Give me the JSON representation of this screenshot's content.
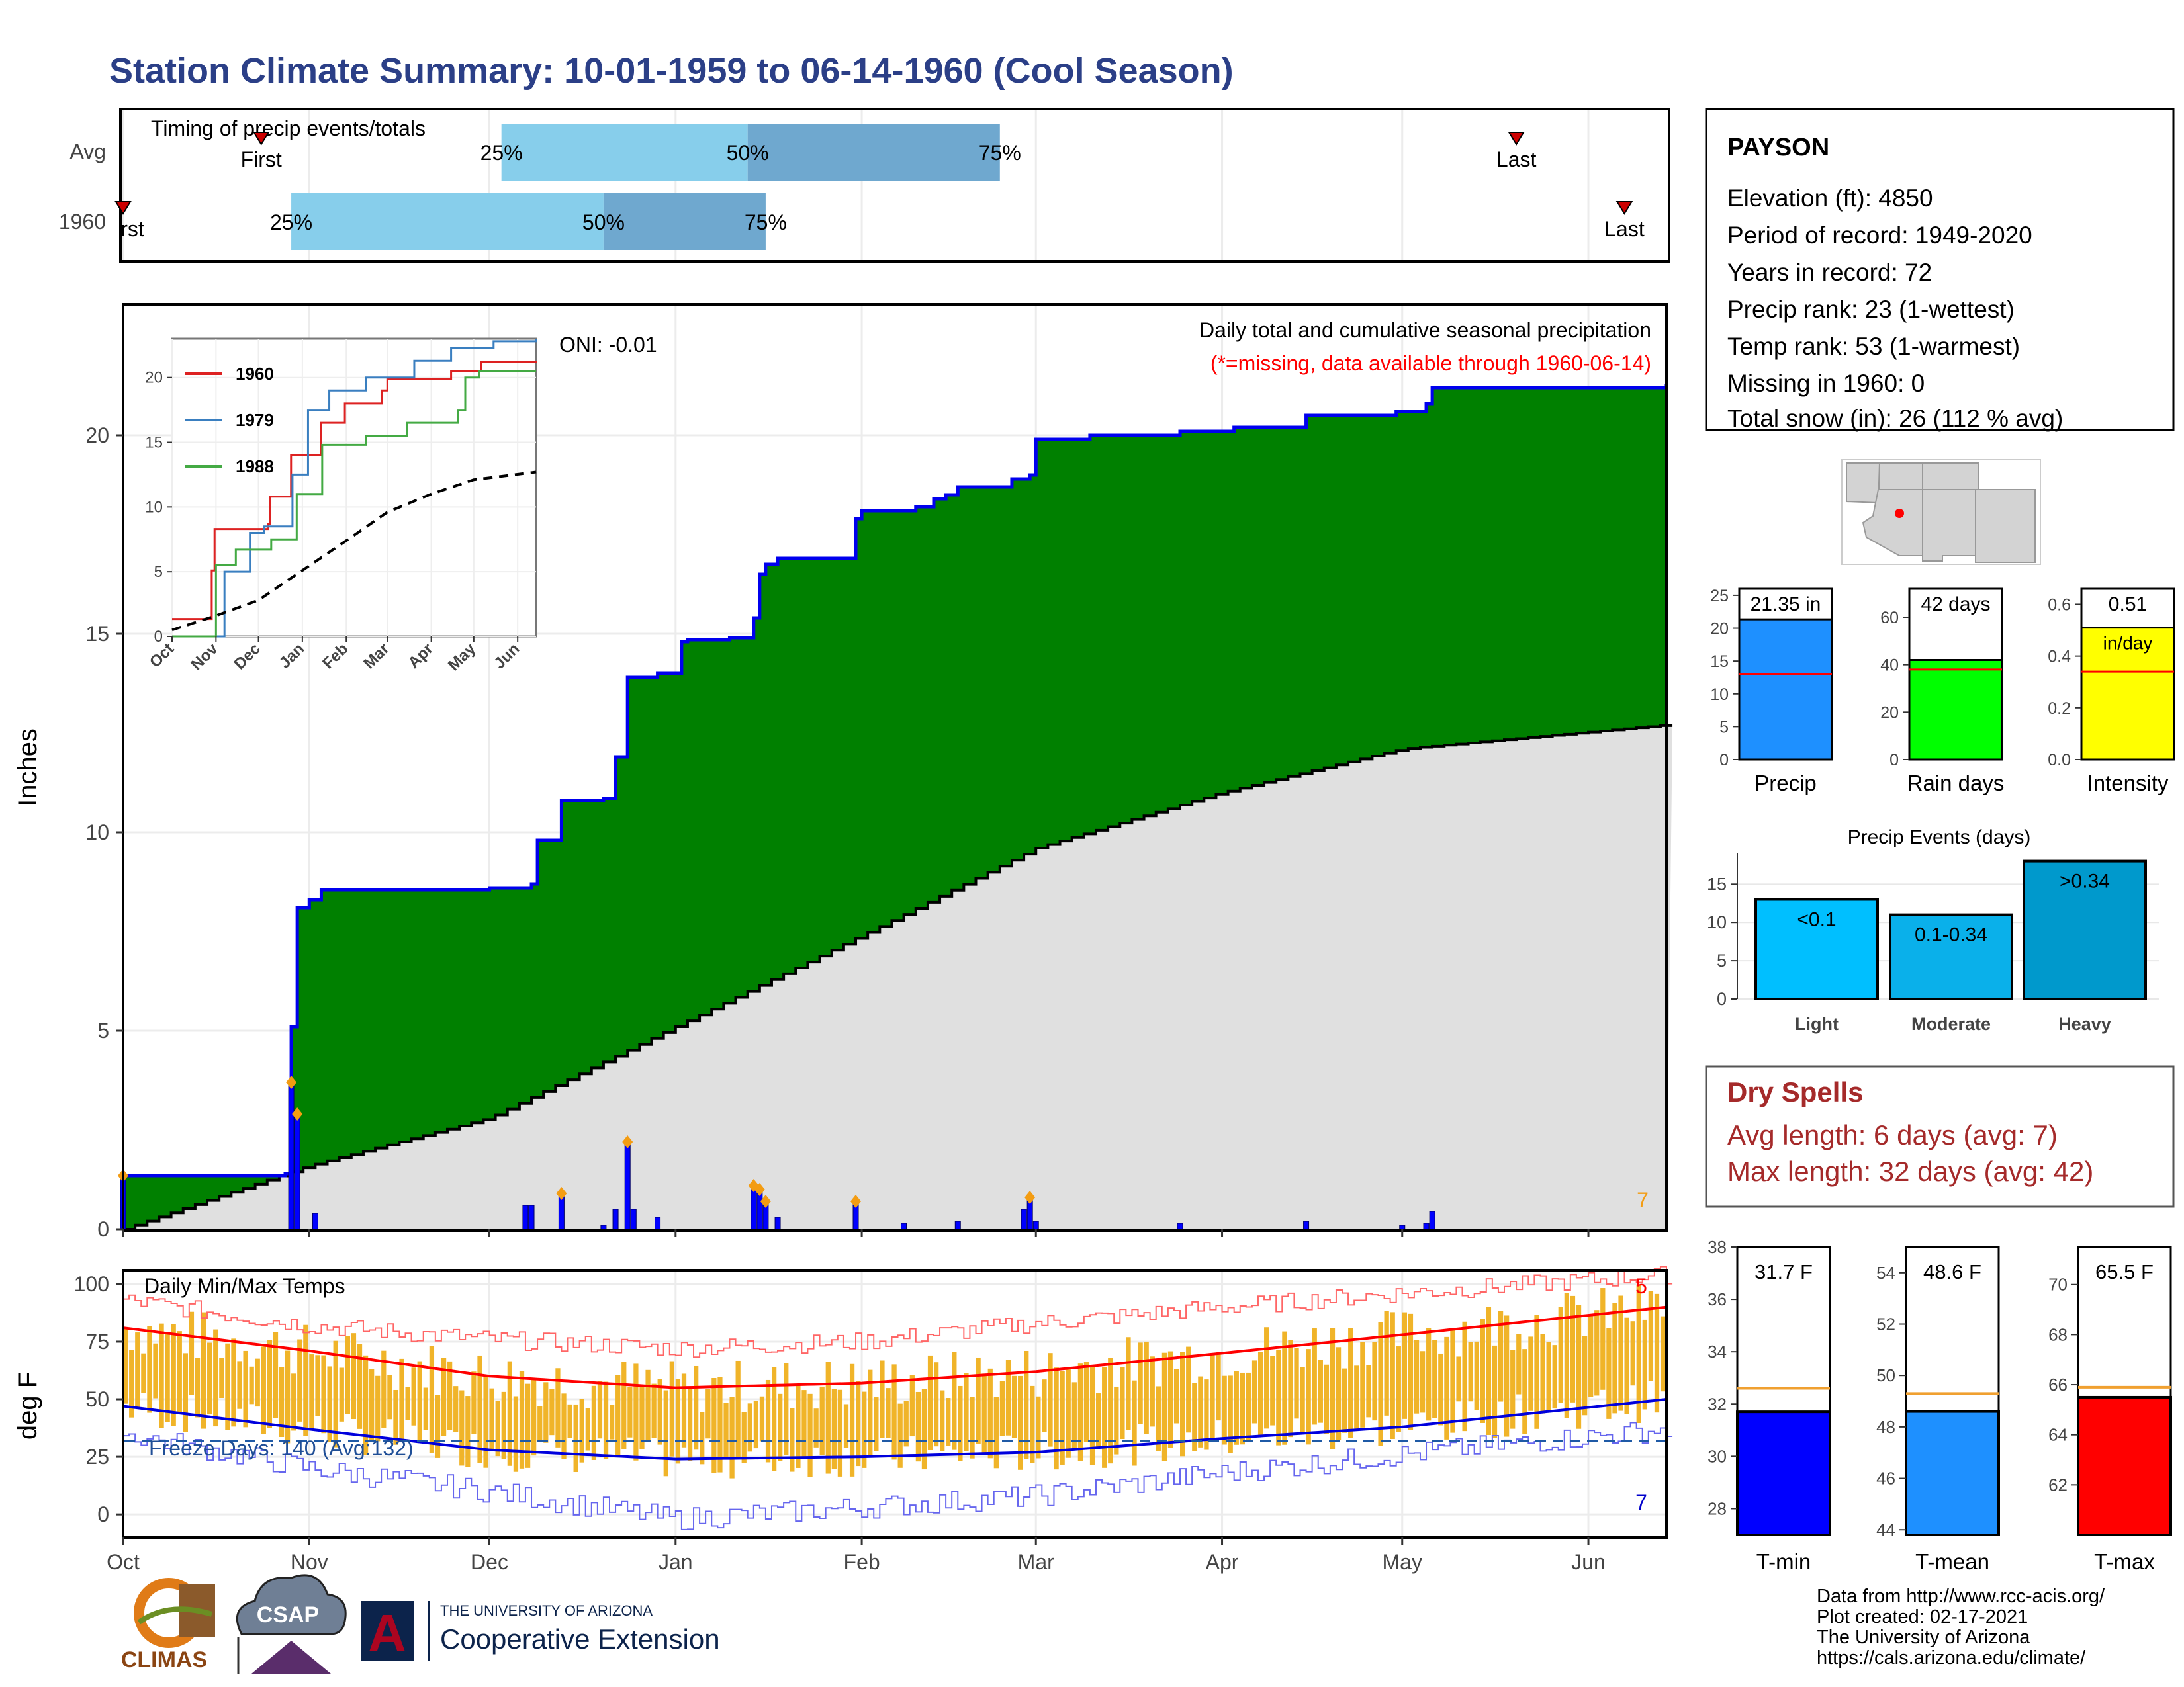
{
  "title": "Station Climate Summary: 10-01-1959 to 06-14-1960 (Cool Season)",
  "colors": {
    "title": "#2b3f87",
    "precip_cum": "#008000",
    "precip_line": "#0000ee",
    "normal_fill": "#e0e0e0",
    "daily_bar": "#0000ff",
    "timing_light": "#87ceeb",
    "timing_dark": "#6fa8cf",
    "tmax_avg": "#ff0000",
    "tmin_avg": "#0000dd",
    "temp_bar": "#f0b429",
    "dry_spells": "#a52a2a"
  },
  "timing": {
    "title": "Timing of precip events/totals",
    "rows": [
      {
        "label": "Avg",
        "first_label": "First",
        "last_label": "Last",
        "first": "1959-10-24",
        "p25": "1959-12-03",
        "p50": "1960-01-13",
        "p75": "1960-02-24",
        "last": "1960-05-20",
        "pct25": "25%",
        "pct50": "50%",
        "pct75": "75%"
      },
      {
        "label": "1960",
        "first_label": "First",
        "last_label": "Last",
        "first": "1959-10-01",
        "p25": "1959-10-29",
        "p50": "1959-12-20",
        "p75": "1960-01-16",
        "last": "1960-06-07",
        "pct25": "25%",
        "pct50": "50%",
        "pct75": "75%"
      }
    ]
  },
  "precip_panel": {
    "ylabel": "Inches",
    "yticks": [
      0,
      5,
      10,
      15,
      20
    ],
    "ylim": [
      0,
      23.3
    ],
    "note1": "Daily total and cumulative seasonal precipitation",
    "note2": "(*=missing, data available through 1960-06-14)",
    "oni": "ONI: -0.01",
    "corner_num": "7"
  },
  "inset": {
    "yticks": [
      0,
      5,
      10,
      15,
      20
    ],
    "xticks": [
      "Oct",
      "Nov",
      "Dec",
      "Jan",
      "Feb",
      "Mar",
      "Apr",
      "May",
      "Jun"
    ],
    "legend": [
      {
        "name": "1960",
        "color": "#dd2222"
      },
      {
        "name": "1979",
        "color": "#3a7fc0"
      },
      {
        "name": "1988",
        "color": "#44aa44"
      }
    ]
  },
  "temp_panel": {
    "title": "Daily Min/Max Temps",
    "ylabel": "deg F",
    "yticks": [
      0,
      25,
      50,
      75,
      100
    ],
    "freeze_label": "Freeze Days: 140 (Avg:132)",
    "freeze_line": 32,
    "corner_top": "5",
    "corner_bottom": "7"
  },
  "xaxis": [
    "Oct",
    "Nov",
    "Dec",
    "Jan",
    "Feb",
    "Mar",
    "Apr",
    "May",
    "Jun"
  ],
  "station": {
    "name": "PAYSON",
    "lines": [
      "Elevation (ft): 4850",
      "Period of record: 1949-2020",
      "Years in record: 72",
      "Precip rank: 23 (1-wettest)",
      "Temp rank: 53 (1-warmest)",
      "Missing in 1960: 0",
      "Total snow (in): 26 (112 % avg)"
    ]
  },
  "summary_bars": [
    {
      "label": "Precip",
      "value": 21.35,
      "value_label": "21.35 in",
      "avg": 13,
      "ymax": 26,
      "ticks": [
        0,
        5,
        10,
        15,
        20,
        25
      ],
      "color": "#1e90ff"
    },
    {
      "label": "Rain days",
      "value": 42,
      "value_label": "42 days",
      "avg": 38,
      "ymax": 72,
      "ticks": [
        0,
        20,
        40,
        60
      ],
      "color": "#00ff00"
    },
    {
      "label": "Intensity",
      "value": 0.51,
      "value_label": "0.51",
      "unit": "in/day",
      "avg": 0.34,
      "ymax": 0.66,
      "ticks": [
        "0.0",
        "0.2",
        "0.4",
        "0.6"
      ],
      "color": "#ffff00"
    }
  ],
  "precip_events": {
    "title": "Precip Events (days)",
    "ticks": [
      0,
      5,
      10,
      15
    ],
    "ymax": 19,
    "bars": [
      {
        "category": "Light",
        "value": 13,
        "label": "<0.1",
        "color": "#00bfff"
      },
      {
        "category": "Moderate",
        "value": 11,
        "label": "0.1-0.34",
        "color": "#0ab0ea"
      },
      {
        "category": "Heavy",
        "value": 18,
        "label": ">0.34",
        "color": "#0099cc"
      }
    ]
  },
  "dry_spells": {
    "title": "Dry Spells",
    "avg_line": "Avg length: 6 days (avg: 7)",
    "max_line": "Max length: 32 days (avg: 42)"
  },
  "temp_bars": [
    {
      "label": "T-min",
      "value": 31.7,
      "value_label": "31.7 F",
      "avg": 32.6,
      "ymin": 27,
      "ymax": 38,
      "ticks": [
        28,
        30,
        32,
        34,
        36,
        38
      ],
      "color": "#0000ff"
    },
    {
      "label": "T-mean",
      "value": 48.6,
      "value_label": "48.6 F",
      "avg": 49.3,
      "ymin": 43.8,
      "ymax": 55,
      "ticks": [
        44,
        46,
        48,
        50,
        52,
        54
      ],
      "color": "#1e90ff"
    },
    {
      "label": "T-max",
      "value": 65.5,
      "value_label": "65.5 F",
      "avg": 65.9,
      "ymin": 60,
      "ymax": 71.5,
      "ticks": [
        62,
        64,
        66,
        68,
        70
      ],
      "color": "#ff0000"
    }
  ],
  "credits": [
    "Data from http://www.rcc-acis.org/",
    "Plot created: 02-17-2021",
    "The University of Arizona",
    "https://cals.arizona.edu/climate/"
  ],
  "logos": {
    "climas": "CLIMAS",
    "csap": "CSAP",
    "ua_small": "THE UNIVERSITY OF ARIZONA",
    "ua_big": "Cooperative Extension",
    "ua_letter": "A"
  },
  "chart_data": [
    {
      "type": "area",
      "title": "Daily total and cumulative seasonal precipitation",
      "ylabel": "Inches",
      "ylim": [
        0,
        23.3
      ],
      "x_range": [
        "1959-10-01",
        "1960-06-14"
      ],
      "series": [
        {
          "name": "1960",
          "points": [
            [
              "1959-10-01",
              1.35
            ],
            [
              "1959-10-28",
              1.4
            ],
            [
              "1959-10-29",
              5.1
            ],
            [
              "1959-10-30",
              8.1
            ],
            [
              "1959-11-01",
              8.3
            ],
            [
              "1959-11-03",
              8.55
            ],
            [
              "1959-12-01",
              8.6
            ],
            [
              "1959-12-08",
              8.7
            ],
            [
              "1959-12-09",
              9.8
            ],
            [
              "1959-12-13",
              10.8
            ],
            [
              "1959-12-20",
              10.85
            ],
            [
              "1959-12-22",
              11.9
            ],
            [
              "1959-12-24",
              13.9
            ],
            [
              "1959-12-29",
              14.0
            ],
            [
              "1960-01-02",
              14.8
            ],
            [
              "1960-01-03",
              14.85
            ],
            [
              "1960-01-10",
              14.9
            ],
            [
              "1960-01-14",
              15.4
            ],
            [
              "1960-01-15",
              16.5
            ],
            [
              "1960-01-16",
              16.75
            ],
            [
              "1960-01-18",
              16.9
            ],
            [
              "1960-01-31",
              17.9
            ],
            [
              "1960-02-01",
              18.1
            ],
            [
              "1960-02-10",
              18.2
            ],
            [
              "1960-02-13",
              18.4
            ],
            [
              "1960-02-15",
              18.5
            ],
            [
              "1960-02-17",
              18.7
            ],
            [
              "1960-02-26",
              18.9
            ],
            [
              "1960-02-29",
              19.0
            ],
            [
              "1960-03-01",
              19.9
            ],
            [
              "1960-03-10",
              20.0
            ],
            [
              "1960-03-25",
              20.1
            ],
            [
              "1960-04-03",
              20.2
            ],
            [
              "1960-04-15",
              20.5
            ],
            [
              "1960-04-30",
              20.6
            ],
            [
              "1960-05-05",
              20.8
            ],
            [
              "1960-05-06",
              21.2
            ],
            [
              "1960-06-14",
              21.3
            ]
          ]
        },
        {
          "name": "avg",
          "points": [
            [
              "1959-10-01",
              0.0
            ],
            [
              "1959-11-01",
              1.6
            ],
            [
              "1959-12-01",
              2.8
            ],
            [
              "1960-01-01",
              5.1
            ],
            [
              "1960-02-01",
              7.4
            ],
            [
              "1960-03-01",
              9.6
            ],
            [
              "1960-04-01",
              11.0
            ],
            [
              "1960-05-01",
              12.1
            ],
            [
              "1960-06-14",
              12.7
            ]
          ]
        }
      ],
      "daily_bars": [
        [
          "1959-10-01",
          1.35
        ],
        [
          "1959-10-29",
          3.7
        ],
        [
          "1959-10-30",
          2.9
        ],
        [
          "1959-11-02",
          0.4
        ],
        [
          "1959-12-07",
          0.6
        ],
        [
          "1959-12-08",
          0.6
        ],
        [
          "1959-12-13",
          0.9
        ],
        [
          "1959-12-20",
          0.1
        ],
        [
          "1959-12-22",
          0.5
        ],
        [
          "1959-12-24",
          2.2
        ],
        [
          "1959-12-25",
          0.5
        ],
        [
          "1959-12-29",
          0.3
        ],
        [
          "1960-01-14",
          1.1
        ],
        [
          "1960-01-15",
          1.0
        ],
        [
          "1960-01-16",
          0.7
        ],
        [
          "1960-01-18",
          0.3
        ],
        [
          "1960-01-31",
          0.7
        ],
        [
          "1960-02-08",
          0.15
        ],
        [
          "1960-02-17",
          0.2
        ],
        [
          "1960-02-28",
          0.5
        ],
        [
          "1960-02-29",
          0.8
        ],
        [
          "1960-03-01",
          0.2
        ],
        [
          "1960-03-25",
          0.15
        ],
        [
          "1960-04-15",
          0.2
        ],
        [
          "1960-05-01",
          0.1
        ],
        [
          "1960-05-05",
          0.15
        ],
        [
          "1960-05-06",
          0.45
        ]
      ]
    },
    {
      "type": "line",
      "inset": true,
      "xlabel": "",
      "ylim": [
        0,
        23
      ],
      "series": [
        {
          "name": "1960",
          "points": [
            [
              "1959-10-01",
              1.35
            ],
            [
              "1959-10-29",
              5.1
            ],
            [
              "1959-10-31",
              8.3
            ],
            [
              "1959-12-08",
              8.7
            ],
            [
              "1959-12-09",
              10.8
            ],
            [
              "1959-12-24",
              14.0
            ],
            [
              "1960-01-14",
              16.5
            ],
            [
              "1960-01-31",
              18.0
            ],
            [
              "1960-02-26",
              19.0
            ],
            [
              "1960-03-01",
              19.9
            ],
            [
              "1960-04-15",
              20.5
            ],
            [
              "1960-05-06",
              21.2
            ],
            [
              "1960-06-14",
              21.3
            ]
          ]
        },
        {
          "name": "1979",
          "points": [
            [
              "1959-10-01",
              0
            ],
            [
              "1959-11-05",
              0
            ],
            [
              "1959-11-07",
              5
            ],
            [
              "1959-11-25",
              8
            ],
            [
              "1959-12-05",
              8.5
            ],
            [
              "1959-12-25",
              12.5
            ],
            [
              "1960-01-05",
              17.5
            ],
            [
              "1960-01-20",
              19
            ],
            [
              "1960-02-15",
              20
            ],
            [
              "1960-03-20",
              21.3
            ],
            [
              "1960-04-15",
              22.3
            ],
            [
              "1960-05-15",
              22.8
            ],
            [
              "1960-06-14",
              23
            ]
          ]
        },
        {
          "name": "1988",
          "points": [
            [
              "1959-10-01",
              0
            ],
            [
              "1959-10-18",
              0
            ],
            [
              "1959-11-01",
              5.5
            ],
            [
              "1959-11-15",
              6.7
            ],
            [
              "1959-12-10",
              7.5
            ],
            [
              "1959-12-28",
              11
            ],
            [
              "1960-01-15",
              14.8
            ],
            [
              "1960-02-15",
              15.5
            ],
            [
              "1960-03-15",
              16.5
            ],
            [
              "1960-04-20",
              17.5
            ],
            [
              "1960-04-25",
              20
            ],
            [
              "1960-05-05",
              20.5
            ],
            [
              "1960-06-14",
              20.5
            ]
          ]
        },
        {
          "name": "avg",
          "points": [
            [
              "1959-10-01",
              0.5
            ],
            [
              "1959-11-01",
              1.6
            ],
            [
              "1959-12-01",
              2.8
            ],
            [
              "1960-01-01",
              5.1
            ],
            [
              "1960-02-01",
              7.4
            ],
            [
              "1960-03-01",
              9.6
            ],
            [
              "1960-04-01",
              11.0
            ],
            [
              "1960-05-01",
              12.1
            ],
            [
              "1960-06-14",
              12.7
            ]
          ]
        }
      ]
    },
    {
      "type": "bar",
      "title": "Daily Min/Max Temps",
      "ylabel": "deg F",
      "ylim": [
        -10,
        106
      ],
      "series": [
        {
          "name": "avg_max",
          "points": [
            [
              "1959-10-01",
              81
            ],
            [
              "1959-11-01",
              71
            ],
            [
              "1959-12-01",
              60
            ],
            [
              "1960-01-01",
              55
            ],
            [
              "1960-02-01",
              57
            ],
            [
              "1960-03-01",
              62
            ],
            [
              "1960-04-01",
              70
            ],
            [
              "1960-05-01",
              78
            ],
            [
              "1960-06-14",
              90
            ]
          ]
        },
        {
          "name": "avg_min",
          "points": [
            [
              "1959-10-01",
              47
            ],
            [
              "1959-11-01",
              37
            ],
            [
              "1959-12-01",
              28
            ],
            [
              "1960-01-01",
              24
            ],
            [
              "1960-02-01",
              25
            ],
            [
              "1960-03-01",
              27
            ],
            [
              "1960-04-01",
              33
            ],
            [
              "1960-05-01",
              38
            ],
            [
              "1960-06-14",
              50
            ]
          ]
        },
        {
          "name": "record_max",
          "points": [
            [
              "1959-10-01",
              93
            ],
            [
              "1959-11-01",
              82
            ],
            [
              "1959-12-01",
              76
            ],
            [
              "1960-01-01",
              72
            ],
            [
              "1960-02-01",
              75
            ],
            [
              "1960-03-01",
              83
            ],
            [
              "1960-04-01",
              90
            ],
            [
              "1960-05-01",
              96
            ],
            [
              "1960-06-14",
              104
            ]
          ]
        },
        {
          "name": "record_min",
          "points": [
            [
              "1959-10-01",
              35
            ],
            [
              "1959-11-01",
              20
            ],
            [
              "1959-12-01",
              10
            ],
            [
              "1960-01-01",
              -2
            ],
            [
              "1960-02-01",
              3
            ],
            [
              "1960-03-01",
              8
            ],
            [
              "1960-04-01",
              18
            ],
            [
              "1960-05-01",
              26
            ],
            [
              "1960-06-14",
              37
            ]
          ]
        }
      ]
    },
    {
      "type": "bar",
      "categories": [
        "Precip",
        "Rain days",
        "Intensity"
      ],
      "values": [
        21.35,
        42,
        0.51
      ]
    },
    {
      "type": "bar",
      "title": "Precip Events (days)",
      "categories": [
        "Light",
        "Moderate",
        "Heavy"
      ],
      "values": [
        13,
        11,
        18
      ]
    },
    {
      "type": "bar",
      "categories": [
        "T-min",
        "T-mean",
        "T-max"
      ],
      "values": [
        31.7,
        48.6,
        65.5
      ]
    }
  ]
}
